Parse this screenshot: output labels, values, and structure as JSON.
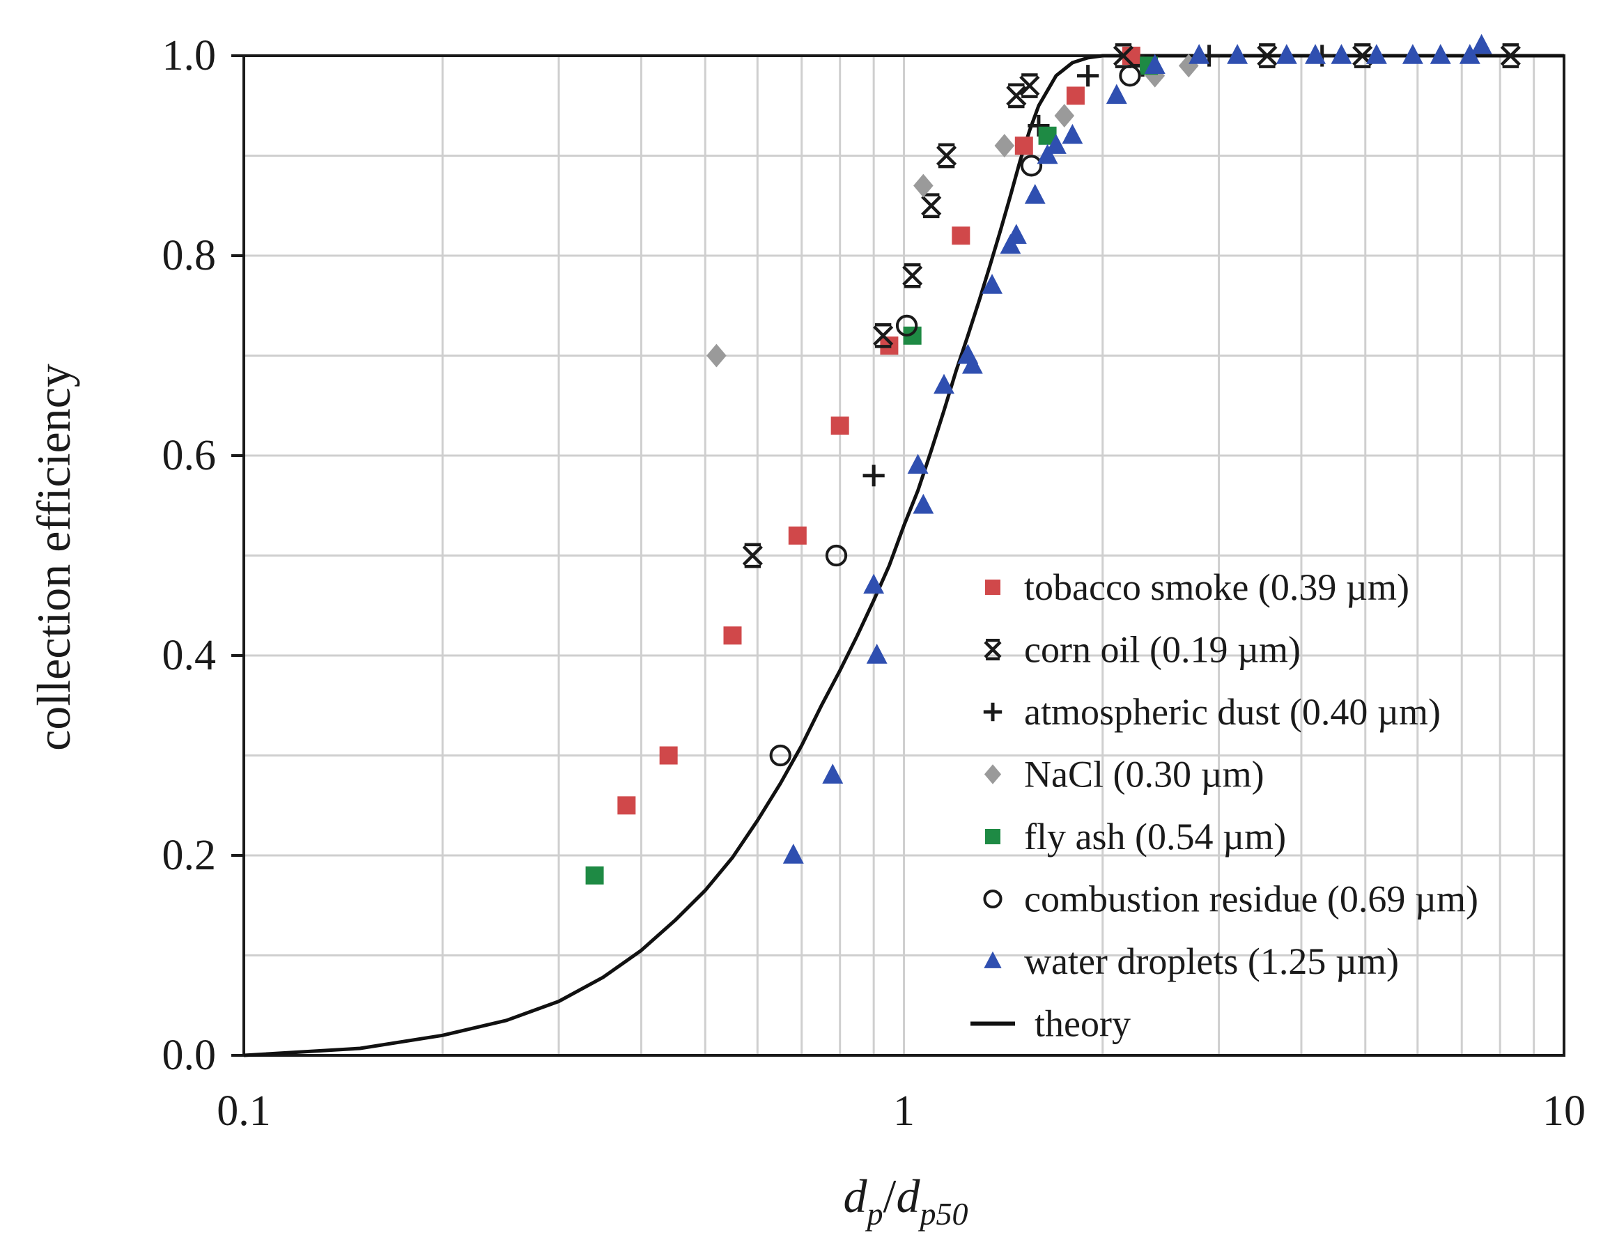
{
  "chart_data": {
    "type": "scatter",
    "title": "",
    "xlabel_parts": {
      "d1": "d",
      "sub1": "p",
      "slash": "/",
      "d2": "d",
      "sub2": "p50"
    },
    "ylabel": "collection efficiency",
    "xscale": "log",
    "xlim": [
      0.1,
      10
    ],
    "ylim": [
      0,
      1
    ],
    "x_tick_labels": [
      {
        "value": 0.1,
        "label": "0.1"
      },
      {
        "value": 1,
        "label": "1"
      },
      {
        "value": 10,
        "label": "10"
      }
    ],
    "y_tick_labels": [
      {
        "value": 0.0,
        "label": "0.0"
      },
      {
        "value": 0.2,
        "label": "0.2"
      },
      {
        "value": 0.4,
        "label": "0.4"
      },
      {
        "value": 0.6,
        "label": "0.6"
      },
      {
        "value": 0.8,
        "label": "0.8"
      },
      {
        "value": 1.0,
        "label": "1.0"
      }
    ],
    "grid": true,
    "legend_position": "lower-right",
    "series": [
      {
        "name": "tobacco smoke (0.39 µm)",
        "marker": "square",
        "color": "#d0484a",
        "points": [
          [
            0.38,
            0.25
          ],
          [
            0.44,
            0.3
          ],
          [
            0.55,
            0.42
          ],
          [
            0.69,
            0.52
          ],
          [
            0.8,
            0.63
          ],
          [
            0.95,
            0.71
          ],
          [
            1.22,
            0.82
          ],
          [
            1.52,
            0.91
          ],
          [
            1.82,
            0.96
          ],
          [
            2.21,
            1.0
          ]
        ]
      },
      {
        "name": "corn oil (0.19 µm)",
        "marker": "asterisk",
        "color": "#1a1a1a",
        "points": [
          [
            0.59,
            0.5
          ],
          [
            0.93,
            0.72
          ],
          [
            1.03,
            0.78
          ],
          [
            1.1,
            0.85
          ],
          [
            1.16,
            0.9
          ],
          [
            1.48,
            0.96
          ],
          [
            1.55,
            0.97
          ],
          [
            2.15,
            1.0
          ],
          [
            3.55,
            1.0
          ],
          [
            4.95,
            1.0
          ],
          [
            8.3,
            1.0
          ]
        ]
      },
      {
        "name": "atmospheric dust (0.40 µm)",
        "marker": "plus",
        "color": "#1a1a1a",
        "points": [
          [
            0.9,
            0.58
          ],
          [
            1.6,
            0.93
          ],
          [
            1.9,
            0.98
          ],
          [
            2.3,
            0.99
          ],
          [
            2.9,
            1.0
          ],
          [
            4.3,
            1.0
          ]
        ]
      },
      {
        "name": "NaCl (0.30 µm)",
        "marker": "diamond",
        "color": "#9a9a9a",
        "points": [
          [
            0.52,
            0.7
          ],
          [
            1.07,
            0.87
          ],
          [
            1.42,
            0.91
          ],
          [
            1.75,
            0.94
          ],
          [
            2.4,
            0.98
          ],
          [
            2.7,
            0.99
          ]
        ]
      },
      {
        "name": "fly ash (0.54 µm)",
        "marker": "square",
        "color": "#1e8a44",
        "points": [
          [
            0.34,
            0.18
          ],
          [
            1.03,
            0.72
          ],
          [
            1.65,
            0.92
          ],
          [
            2.35,
            0.99
          ]
        ]
      },
      {
        "name": "combustion residue (0.69 µm)",
        "marker": "circle",
        "color": "#1a1a1a",
        "points": [
          [
            0.65,
            0.3
          ],
          [
            0.79,
            0.5
          ],
          [
            1.01,
            0.73
          ],
          [
            1.56,
            0.89
          ],
          [
            2.2,
            0.98
          ]
        ]
      },
      {
        "name": "water droplets (1.25 µm)",
        "marker": "triangle",
        "color": "#2f4fb0",
        "points": [
          [
            0.68,
            0.2
          ],
          [
            0.78,
            0.28
          ],
          [
            0.91,
            0.4
          ],
          [
            0.9,
            0.47
          ],
          [
            1.07,
            0.55
          ],
          [
            1.05,
            0.59
          ],
          [
            1.15,
            0.67
          ],
          [
            1.25,
            0.7
          ],
          [
            1.27,
            0.69
          ],
          [
            1.36,
            0.77
          ],
          [
            1.45,
            0.81
          ],
          [
            1.48,
            0.82
          ],
          [
            1.58,
            0.86
          ],
          [
            1.65,
            0.9
          ],
          [
            1.7,
            0.91
          ],
          [
            1.8,
            0.92
          ],
          [
            2.1,
            0.96
          ],
          [
            2.4,
            0.99
          ],
          [
            2.8,
            1.0
          ],
          [
            3.2,
            1.0
          ],
          [
            3.8,
            1.0
          ],
          [
            4.2,
            1.0
          ],
          [
            4.6,
            1.0
          ],
          [
            5.2,
            1.0
          ],
          [
            5.9,
            1.0
          ],
          [
            6.5,
            1.0
          ],
          [
            7.2,
            1.0
          ],
          [
            7.5,
            1.01
          ]
        ]
      }
    ],
    "theory": {
      "name": "theory",
      "color": "#111111",
      "points": [
        [
          0.1,
          0.0
        ],
        [
          0.15,
          0.007
        ],
        [
          0.2,
          0.02
        ],
        [
          0.25,
          0.035
        ],
        [
          0.3,
          0.054
        ],
        [
          0.35,
          0.078
        ],
        [
          0.4,
          0.105
        ],
        [
          0.45,
          0.135
        ],
        [
          0.5,
          0.165
        ],
        [
          0.55,
          0.198
        ],
        [
          0.6,
          0.235
        ],
        [
          0.65,
          0.272
        ],
        [
          0.7,
          0.31
        ],
        [
          0.75,
          0.35
        ],
        [
          0.8,
          0.385
        ],
        [
          0.85,
          0.42
        ],
        [
          0.9,
          0.455
        ],
        [
          0.95,
          0.49
        ],
        [
          1.0,
          0.53
        ],
        [
          1.05,
          0.565
        ],
        [
          1.1,
          0.605
        ],
        [
          1.15,
          0.645
        ],
        [
          1.2,
          0.685
        ],
        [
          1.25,
          0.72
        ],
        [
          1.3,
          0.755
        ],
        [
          1.35,
          0.79
        ],
        [
          1.4,
          0.825
        ],
        [
          1.45,
          0.86
        ],
        [
          1.5,
          0.895
        ],
        [
          1.55,
          0.925
        ],
        [
          1.6,
          0.95
        ],
        [
          1.7,
          0.98
        ],
        [
          1.8,
          0.993
        ],
        [
          1.9,
          0.998
        ],
        [
          2.0,
          1.0
        ],
        [
          3.0,
          1.0
        ],
        [
          5.0,
          1.0
        ],
        [
          10.0,
          1.0
        ]
      ]
    }
  }
}
